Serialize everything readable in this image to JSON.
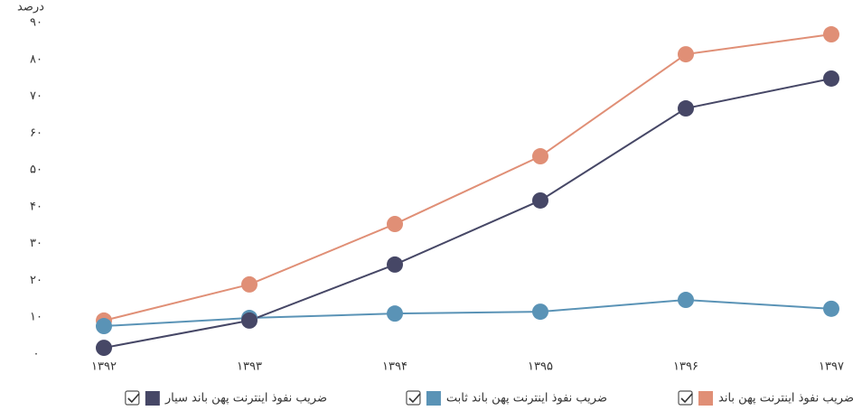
{
  "chart_data": {
    "type": "line",
    "y_label": "درصد",
    "categories": [
      "۱۳۹۲",
      "۱۳۹۳",
      "۱۳۹۴",
      "۱۳۹۵",
      "۱۳۹۶",
      "۱۳۹۷"
    ],
    "series": [
      {
        "name": "ضریب نفوذ اینترنت پهن باند",
        "color": "#e08f76",
        "values": [
          9.1,
          18.9,
          35.3,
          53.7,
          81.4,
          86.8
        ]
      },
      {
        "name": "ضریب نفوذ اینترنت پهن باند ثابت",
        "color": "#5a93b6",
        "values": [
          7.6,
          9.8,
          11,
          11.5,
          14.7,
          12.3
        ]
      },
      {
        "name": "ضریب نفوذ اینترنت پهن باند سیار",
        "color": "#464766",
        "values": [
          1.7,
          9.1,
          24.3,
          41.7,
          66.7,
          74.8
        ]
      }
    ],
    "ylim": [
      0,
      90
    ],
    "yticks": [
      {
        "value": 0,
        "label": "۰"
      },
      {
        "value": 10,
        "label": "۱۰"
      },
      {
        "value": 20,
        "label": "۲۰"
      },
      {
        "value": 30,
        "label": "۳۰"
      },
      {
        "value": 40,
        "label": "۴۰"
      },
      {
        "value": 50,
        "label": "۵۰"
      },
      {
        "value": 60,
        "label": "۶۰"
      },
      {
        "value": 70,
        "label": "۷۰"
      },
      {
        "value": 80,
        "label": "۸۰"
      },
      {
        "value": 90,
        "label": "۹۰"
      }
    ],
    "grid": false
  }
}
